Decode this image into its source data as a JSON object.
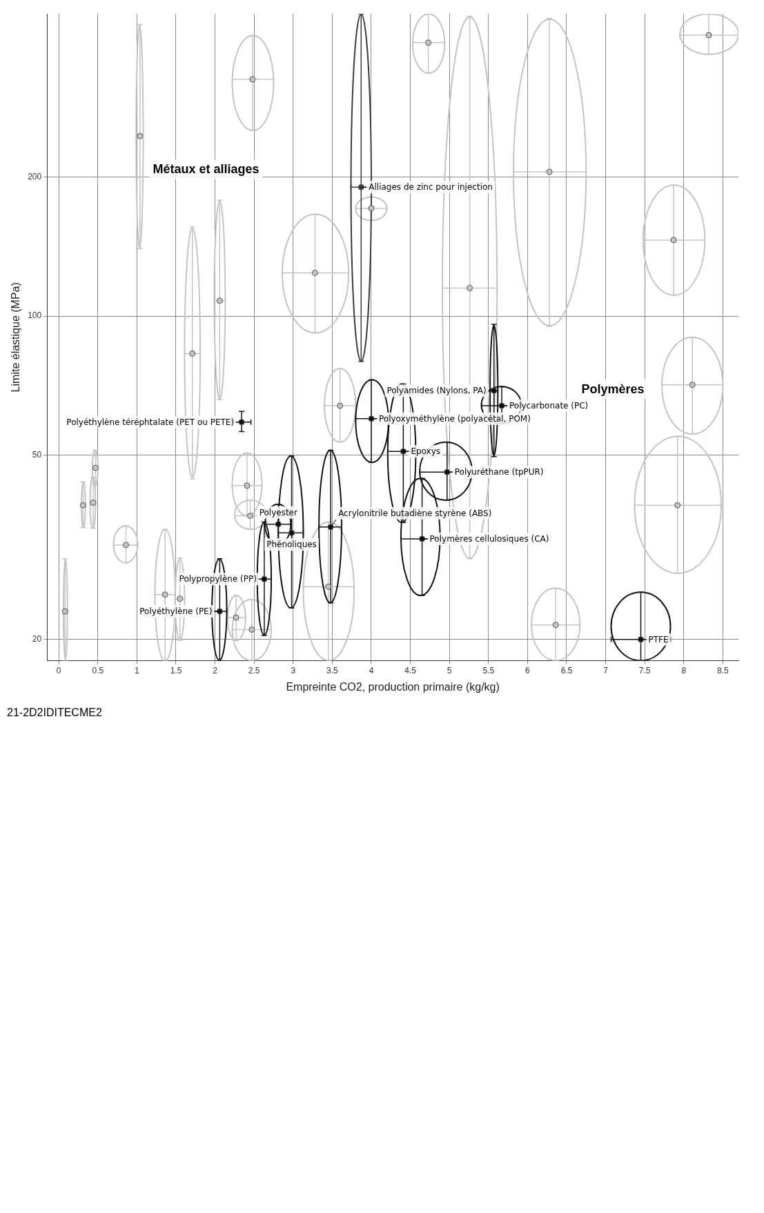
{
  "chart_data": {
    "type": "scatter",
    "xlabel": "Empreinte CO2, production primaire (kg/kg)",
    "ylabel": "Limite élastique (MPa)",
    "xlim": [
      -0.15,
      8.7
    ],
    "xticks": [
      0,
      0.5,
      1,
      1.5,
      2,
      2.5,
      3,
      3.5,
      4,
      4.5,
      5,
      5.5,
      6,
      6.5,
      7,
      7.5,
      8,
      8.5
    ],
    "ylim": [
      18,
      450
    ],
    "yticks": [
      20,
      50,
      100,
      200
    ],
    "log": true,
    "grid": true,
    "legend": false,
    "annotations": [
      "Métaux et alliages",
      "Polymères",
      "21-2D2IDITECME2"
    ],
    "marker": "circle",
    "series": [
      {
        "color": "#c4c4c4",
        "x": [
          6.28
        ],
        "values": [
          205
        ],
        "errors": [
          [
            95,
            440
          ]
        ],
        "xerrors": [
          [
            5.82,
            6.75
          ]
        ]
      },
      {
        "color": "#c4c4c4",
        "x": [
          6.36
        ],
        "values": [
          21.5
        ],
        "errors": [
          [
            18,
            25.8
          ]
        ],
        "xerrors": [
          [
            6.05,
            6.67
          ]
        ]
      },
      {
        "color": "#c4c4c4",
        "x": [
          7.92
        ],
        "values": [
          39
        ],
        "errors": [
          [
            27.8,
            55
          ]
        ],
        "xerrors": [
          [
            7.37,
            8.48
          ]
        ]
      },
      {
        "color": "#c4c4c4",
        "x": [
          8.11
        ],
        "values": [
          71
        ],
        "errors": [
          [
            55.6,
            90
          ]
        ],
        "xerrors": [
          [
            7.72,
            8.5
          ]
        ]
      },
      {
        "color": "#c4c4c4",
        "x": [
          7.87
        ],
        "values": [
          146
        ],
        "errors": [
          [
            111,
            192
          ]
        ],
        "xerrors": [
          [
            7.48,
            8.27
          ]
        ]
      },
      {
        "color": "#c4c4c4",
        "x": [
          3.28
        ],
        "values": [
          124
        ],
        "errors": [
          [
            92,
            166
          ]
        ],
        "xerrors": [
          [
            2.86,
            3.71
          ]
        ]
      },
      {
        "color": "#c4c4c4",
        "x": [
          3.45
        ],
        "values": [
          26
        ],
        "errors": [
          [
            18,
            35.9
          ]
        ],
        "xerrors": [
          [
            3.13,
            3.78
          ]
        ]
      },
      {
        "color": "#c4c4c4",
        "x": [
          5.26
        ],
        "values": [
          115
        ],
        "errors": [
          [
            29.9,
            444
          ]
        ],
        "xerrors": [
          [
            4.91,
            5.61
          ]
        ]
      },
      {
        "color": "#c4c4c4",
        "x": [
          2.48
        ],
        "values": [
          325
        ],
        "errors": [
          [
            252,
            404
          ]
        ],
        "xerrors": [
          [
            2.22,
            2.75
          ]
        ]
      },
      {
        "color": "#c4c4c4",
        "x": [
          2.41
        ],
        "values": [
          43
        ],
        "errors": [
          [
            37,
            50.6
          ]
        ],
        "xerrors": [
          [
            2.22,
            2.6
          ]
        ]
      },
      {
        "color": "#c4c4c4",
        "x": [
          2.47
        ],
        "values": [
          21
        ],
        "errors": [
          [
            18,
            24.4
          ]
        ],
        "xerrors": [
          [
            2.22,
            2.72
          ]
        ]
      },
      {
        "color": "#c4c4c4",
        "x": [
          2.27
        ],
        "values": [
          22.3
        ],
        "errors": [
          [
            19.9,
            24.9
          ]
        ],
        "xerrors": [
          [
            2.16,
            2.39
          ]
        ]
      },
      {
        "color": "#c4c4c4",
        "x": [
          2.06
        ],
        "values": [
          108
        ],
        "errors": [
          [
            66,
            178
          ]
        ],
        "xerrors": [
          [
            1.99,
            2.13
          ]
        ]
      },
      {
        "color": "#c4c4c4",
        "x": [
          1.71
        ],
        "values": [
          83
        ],
        "errors": [
          [
            44.5,
            156
          ]
        ],
        "xerrors": [
          [
            1.61,
            1.81
          ]
        ]
      },
      {
        "color": "#c4c4c4",
        "x": [
          1.55
        ],
        "values": [
          24.5
        ],
        "errors": [
          [
            19.9,
            30
          ]
        ],
        "xerrors": [
          [
            1.49,
            1.61
          ]
        ]
      },
      {
        "color": "#c4c4c4",
        "x": [
          1.36
        ],
        "values": [
          25
        ],
        "errors": [
          [
            18,
            34.6
          ]
        ],
        "xerrors": [
          [
            1.23,
            1.49
          ]
        ]
      },
      {
        "color": "#c4c4c4",
        "x": [
          0.86
        ],
        "values": [
          32
        ],
        "errors": [
          [
            29.3,
            35.2
          ]
        ],
        "xerrors": [
          [
            0.7,
            1.01
          ]
        ]
      },
      {
        "color": "#c4c4c4",
        "x": [
          1.04
        ],
        "values": [
          245
        ],
        "errors": [
          [
            140,
            427
          ]
        ],
        "xerrors": [
          [
            0.99,
            1.08
          ]
        ]
      },
      {
        "color": "#c4c4c4",
        "x": [
          0.47
        ],
        "values": [
          47
        ],
        "errors": [
          [
            43,
            51.3
          ]
        ],
        "xerrors": [
          [
            0.43,
            0.5
          ]
        ]
      },
      {
        "color": "#c4c4c4",
        "x": [
          0.44
        ],
        "values": [
          39.5
        ],
        "errors": [
          [
            34.8,
            44.8
          ]
        ],
        "xerrors": [
          [
            0.4,
            0.47
          ]
        ]
      },
      {
        "color": "#c4c4c4",
        "x": [
          0.31
        ],
        "values": [
          39
        ],
        "errors": [
          [
            34.9,
            43.8
          ]
        ],
        "xerrors": [
          [
            0.29,
            0.34
          ]
        ]
      },
      {
        "color": "#c4c4c4",
        "x": [
          0.08
        ],
        "values": [
          23
        ],
        "errors": [
          [
            18,
            29.9
          ]
        ],
        "xerrors": [
          [
            0.06,
            0.11
          ]
        ]
      },
      {
        "color": "#c4c4c4",
        "x": [
          8.32
        ],
        "values": [
          405
        ],
        "errors": [
          [
            368,
            450
          ]
        ],
        "xerrors": [
          [
            7.95,
            8.7
          ]
        ]
      },
      {
        "color": "#c4c4c4",
        "x": [
          4.73
        ],
        "values": [
          390
        ],
        "errors": [
          [
            335,
            450
          ]
        ],
        "xerrors": [
          [
            4.53,
            4.94
          ]
        ]
      },
      {
        "color": "#c4c4c4",
        "x": [
          3.6
        ],
        "values": [
          64
        ],
        "errors": [
          [
            53.4,
            77
          ]
        ],
        "xerrors": [
          [
            3.4,
            3.8
          ]
        ]
      },
      {
        "color": "#c4c4c4",
        "x": [
          2.45
        ],
        "values": [
          37
        ],
        "errors": [
          [
            34.6,
            40
          ]
        ],
        "xerrors": [
          [
            2.25,
            2.66
          ]
        ]
      },
      {
        "color": "#c4c4c4",
        "x": [
          4.0
        ],
        "values": [
          171
        ],
        "errors": [
          [
            161,
            181
          ]
        ],
        "xerrors": [
          [
            3.8,
            4.2
          ]
        ]
      },
      {
        "name": "Alliages de zinc pour injection",
        "color": "#3a3a3a",
        "x": [
          3.87
        ],
        "values": [
          190
        ],
        "errors": [
          [
            79.8,
            450
          ]
        ],
        "xerrors": [
          [
            3.74,
            4.0
          ]
        ]
      },
      {
        "name": "PTFE",
        "color": "#111111",
        "x": [
          7.45
        ],
        "values": [
          20
        ],
        "errors": [
          [
            18,
            25.3
          ]
        ],
        "xerrors": [
          [
            7.07,
            7.83
          ]
        ]
      },
      {
        "name": "Polyamides (Nylons, PA)",
        "color": "#111111",
        "x": [
          5.57
        ],
        "values": [
          69
        ],
        "errors": [
          [
            49.7,
            96
          ]
        ],
        "xerrors": [
          [
            5.52,
            5.62
          ]
        ]
      },
      {
        "name": "Polycarbonate (PC)",
        "color": "#111111",
        "x": [
          5.67
        ],
        "values": [
          64
        ],
        "errors": [
          [
            58.6,
            70.4
          ]
        ],
        "xerrors": [
          [
            5.41,
            5.92
          ]
        ]
      },
      {
        "name": "Polyuréthane (tpPUR)",
        "color": "#111111",
        "x": [
          4.97
        ],
        "values": [
          46
        ],
        "errors": [
          [
            40,
            53.4
          ]
        ],
        "xerrors": [
          [
            4.62,
            5.29
          ]
        ]
      },
      {
        "name": "Polymères cellulosiques (CA)",
        "color": "#111111",
        "x": [
          4.65
        ],
        "values": [
          33
        ],
        "errors": [
          [
            24.9,
            44.6
          ]
        ],
        "xerrors": [
          [
            4.38,
            4.88
          ]
        ]
      },
      {
        "name": "Epoxys",
        "color": "#111111",
        "x": [
          4.41
        ],
        "values": [
          51
        ],
        "errors": [
          [
            35.8,
            71.3
          ]
        ],
        "xerrors": [
          [
            4.21,
            4.57
          ]
        ]
      },
      {
        "name": "Polyoxyméthylène (polyacétal, POM)",
        "color": "#111111",
        "x": [
          4.0
        ],
        "values": [
          60
        ],
        "errors": [
          [
            48.3,
            72.8
          ]
        ],
        "xerrors": [
          [
            3.8,
            4.22
          ]
        ]
      },
      {
        "name": "Acrylonitrile butadiène styrène (ABS)",
        "color": "#111111",
        "x": [
          3.48
        ],
        "values": [
          35
        ],
        "errors": [
          [
            24,
            51.3
          ]
        ],
        "xerrors": [
          [
            3.33,
            3.62
          ]
        ]
      },
      {
        "name": "Phénoliques",
        "color": "#111111",
        "x": [
          2.98
        ],
        "values": [
          34
        ],
        "errors": [
          [
            23.4,
            49.8
          ]
        ],
        "xerrors": [
          [
            2.81,
            3.13
          ]
        ]
      },
      {
        "name": "Polyester",
        "color": "#111111",
        "x": [
          2.81
        ],
        "values": [
          35.5
        ],
        "errors": [
          [
            32.1,
            39.2
          ]
        ],
        "xerrors": [
          [
            2.64,
            2.97
          ]
        ]
      },
      {
        "name": "Polypropylène (PP)",
        "color": "#111111",
        "x": [
          2.63
        ],
        "values": [
          27
        ],
        "errors": [
          [
            20.4,
            35.9
          ]
        ],
        "xerrors": [
          [
            2.54,
            2.72
          ]
        ]
      },
      {
        "name": "Polyéthylène (PE)",
        "color": "#111111",
        "x": [
          2.06
        ],
        "values": [
          23
        ],
        "errors": [
          [
            18,
            29.9
          ]
        ],
        "xerrors": [
          [
            1.96,
            2.15
          ]
        ]
      },
      {
        "name": "Polyéthylène téréphtalate (PET ou PETE)",
        "color": "#111111",
        "x": [
          2.34
        ],
        "values": [
          59
        ],
        "errors": [
          [
            56.3,
            62.2
          ]
        ],
        "xerrors": [
          [
            2.21,
            2.46
          ]
        ]
      }
    ]
  }
}
